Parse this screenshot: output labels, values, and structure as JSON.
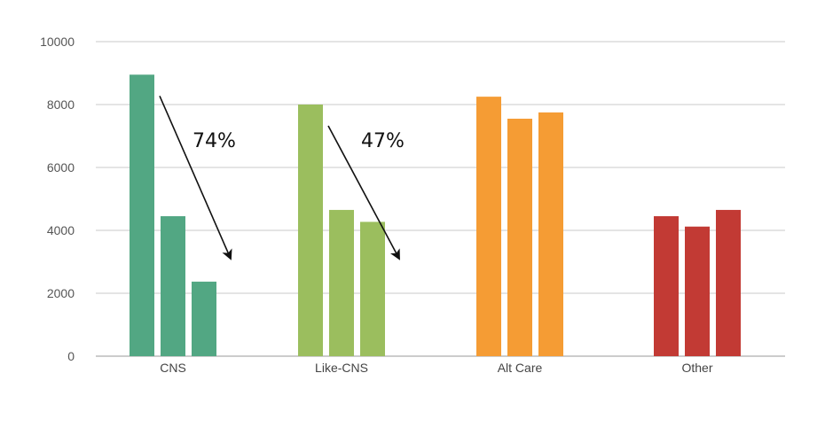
{
  "chart_data": {
    "type": "bar",
    "categories": [
      "CNS",
      "Like-CNS",
      "Alt Care",
      "Other"
    ],
    "groups": [
      {
        "category": "CNS",
        "color": "#52a783",
        "values": [
          8950,
          4450,
          2370
        ]
      },
      {
        "category": "Like-CNS",
        "color": "#9bbe5e",
        "values": [
          8000,
          4650,
          4270
        ]
      },
      {
        "category": "Alt Care",
        "color": "#f59c34",
        "values": [
          8250,
          7550,
          7750
        ]
      },
      {
        "category": "Other",
        "color": "#c23a34",
        "values": [
          4450,
          4120,
          4650
        ]
      }
    ],
    "y_ticks": [
      "0",
      "2000",
      "4000",
      "6000",
      "8000",
      "10000"
    ],
    "ylim": [
      0,
      10000
    ],
    "grid": true,
    "annotations": [
      {
        "text": "74%",
        "category": "CNS",
        "from_value": 8950,
        "to_value": 3100
      },
      {
        "text": "47%",
        "category": "Like-CNS",
        "from_value": 8000,
        "to_value": 3100
      }
    ],
    "title": "",
    "xlabel": "",
    "ylabel": ""
  }
}
